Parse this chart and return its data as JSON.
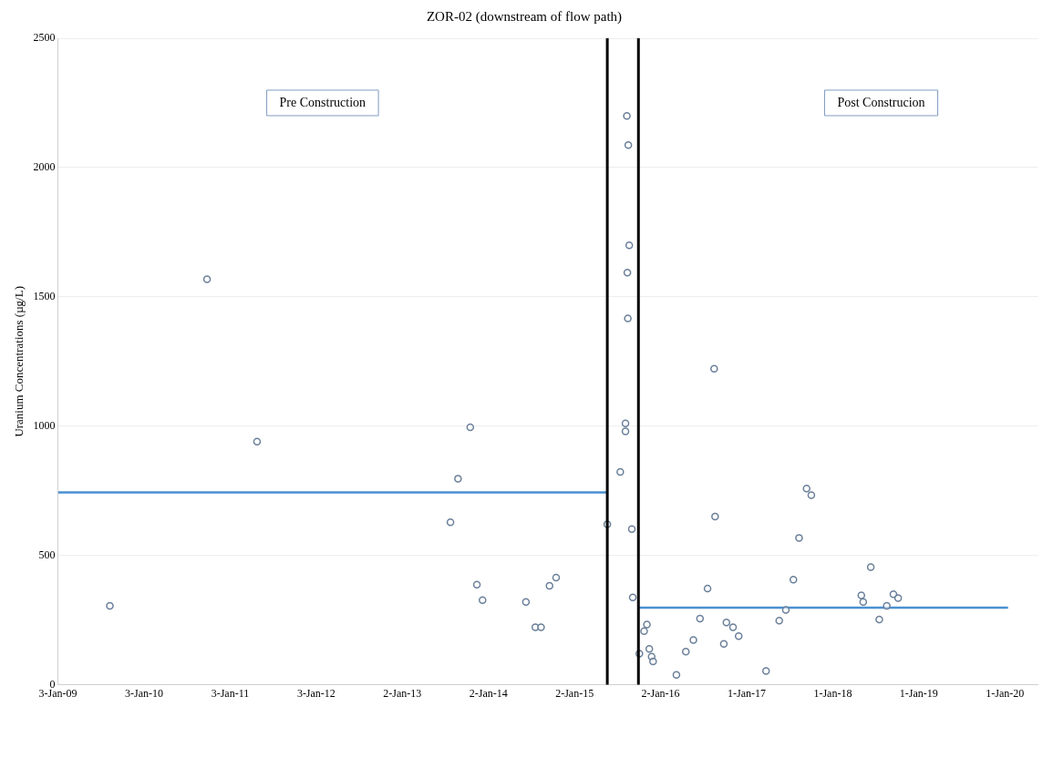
{
  "chart_data": {
    "type": "scatter",
    "title": "ZOR-02 (downstream of flow path)",
    "ylabel": "Uranium Concentrations (µg/L)",
    "xlim": [
      "2009-01-03",
      "2020-05-20"
    ],
    "xticks": [
      {
        "value": "2009-01-03",
        "label": "3-Jan-09"
      },
      {
        "value": "2010-01-03",
        "label": "3-Jan-10"
      },
      {
        "value": "2011-01-03",
        "label": "3-Jan-11"
      },
      {
        "value": "2012-01-03",
        "label": "3-Jan-12"
      },
      {
        "value": "2013-01-02",
        "label": "2-Jan-13"
      },
      {
        "value": "2014-01-02",
        "label": "2-Jan-14"
      },
      {
        "value": "2015-01-02",
        "label": "2-Jan-15"
      },
      {
        "value": "2016-01-02",
        "label": "2-Jan-16"
      },
      {
        "value": "2017-01-01",
        "label": "1-Jan-17"
      },
      {
        "value": "2018-01-01",
        "label": "1-Jan-18"
      },
      {
        "value": "2019-01-01",
        "label": "1-Jan-19"
      },
      {
        "value": "2020-01-01",
        "label": "1-Jan-20"
      }
    ],
    "ylim": [
      0,
      2500
    ],
    "yticks": [
      0,
      500,
      1000,
      1500,
      2000,
      2500
    ],
    "grid": "y",
    "legend": false,
    "marker": "circle",
    "series": [
      {
        "color": "#6a7f99",
        "x": [
          "2009-08-11",
          "2010-09-27",
          "2011-04-27",
          "2013-07-25",
          "2013-08-26",
          "2013-10-17",
          "2013-11-14",
          "2013-12-08",
          "2014-06-10",
          "2014-07-20",
          "2014-08-13",
          "2014-09-18",
          "2014-10-16",
          "2015-05-21",
          "2015-07-15",
          "2015-08-06",
          "2015-08-06",
          "2015-08-12",
          "2015-08-18",
          "2015-08-14",
          "2015-08-22",
          "2015-08-16",
          "2015-09-02",
          "2015-09-06",
          "2015-10-04",
          "2015-10-24",
          "2015-11-05",
          "2015-11-15",
          "2015-11-25",
          "2015-12-01",
          "2016-03-09",
          "2016-04-18",
          "2016-05-20",
          "2016-06-17",
          "2016-07-19",
          "2016-08-16",
          "2016-08-20",
          "2016-09-26",
          "2016-10-07",
          "2016-11-04",
          "2016-11-28",
          "2017-03-24",
          "2017-05-19",
          "2017-06-16",
          "2017-07-18",
          "2017-08-11",
          "2017-09-12",
          "2017-10-02",
          "2018-05-02",
          "2018-05-10",
          "2018-06-11",
          "2018-07-17",
          "2018-08-18",
          "2018-09-15",
          "2018-10-05"
        ],
        "values": [
          305,
          1568,
          940,
          628,
          797,
          996,
          387,
          327,
          320,
          222,
          222,
          383,
          414,
          620,
          823,
          1011,
          980,
          2200,
          2087,
          1594,
          1699,
          1417,
          602,
          338,
          120,
          207,
          233,
          139,
          109,
          90,
          38,
          128,
          173,
          256,
          372,
          1222,
          650,
          158,
          241,
          222,
          188,
          53,
          248,
          289,
          406,
          568,
          759,
          733,
          346,
          320,
          455,
          252,
          305,
          350,
          335
        ]
      },
      {
        "type": "line",
        "marker": "none",
        "color": "#4a90d0",
        "x": [
          "2009-01-03",
          "2015-05-21"
        ],
        "values": [
          744,
          744
        ]
      },
      {
        "type": "line",
        "marker": "none",
        "color": "#4a90d0",
        "x": [
          "2015-09-30",
          "2020-01-14"
        ],
        "values": [
          298,
          298
        ]
      }
    ],
    "ref_lines": [
      {
        "axis": "x",
        "value": "2015-05-21",
        "color": "#000000"
      },
      {
        "axis": "x",
        "value": "2015-09-30",
        "color": "#000000"
      }
    ],
    "annotations": [
      "Pre Construction",
      "Post Construcion"
    ]
  }
}
